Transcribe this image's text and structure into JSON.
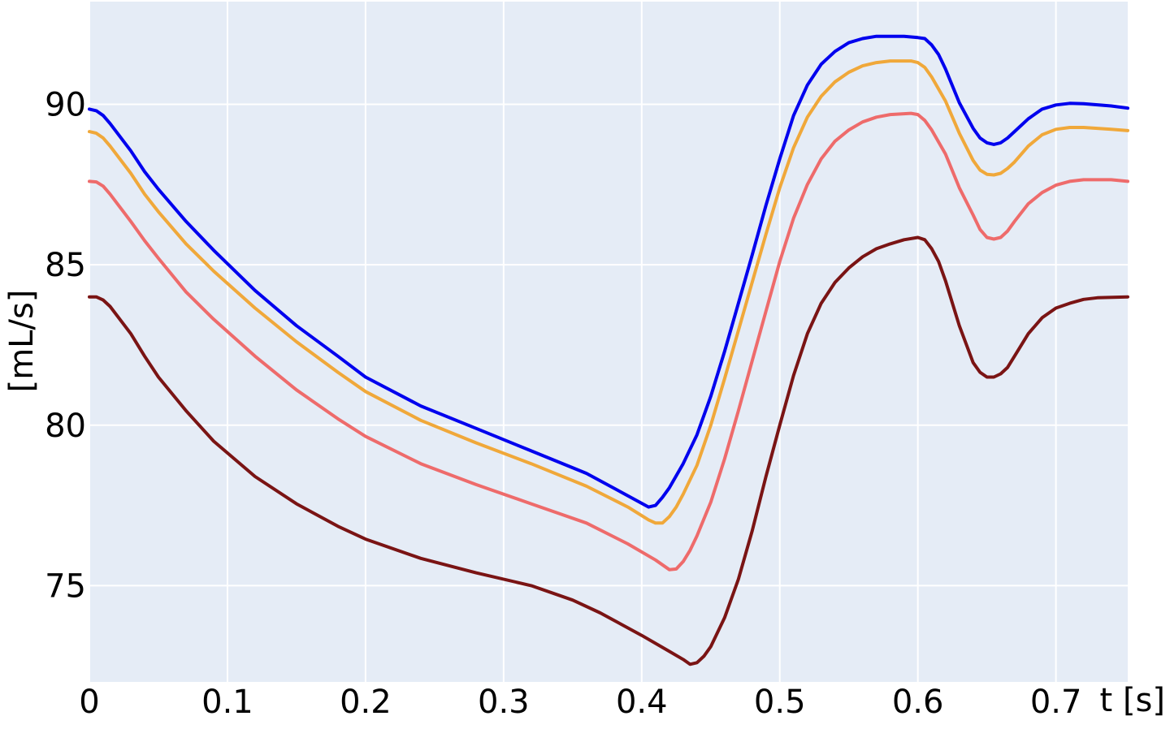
{
  "chart_data": {
    "type": "line",
    "title": "",
    "xlabel": "t [s]",
    "ylabel": "[mL/s]",
    "xlim": [
      0,
      0.752
    ],
    "ylim": [
      72.0,
      93.2
    ],
    "grid": true,
    "background_color": "#e5ecf6",
    "x_ticks": [
      {
        "value": 0,
        "label": "0"
      },
      {
        "value": 0.1,
        "label": "0.1"
      },
      {
        "value": 0.2,
        "label": "0.2"
      },
      {
        "value": 0.3,
        "label": "0.3"
      },
      {
        "value": 0.4,
        "label": "0.4"
      },
      {
        "value": 0.5,
        "label": "0.5"
      },
      {
        "value": 0.6,
        "label": "0.6"
      },
      {
        "value": 0.7,
        "label": "0.7"
      }
    ],
    "y_ticks": [
      {
        "value": 75,
        "label": "75"
      },
      {
        "value": 80,
        "label": "80"
      },
      {
        "value": 85,
        "label": "85"
      },
      {
        "value": 90,
        "label": "90"
      }
    ],
    "series": [
      {
        "color": "#0000ee",
        "points": [
          [
            0,
            89.85
          ],
          [
            0.005,
            89.8
          ],
          [
            0.01,
            89.65
          ],
          [
            0.015,
            89.4
          ],
          [
            0.03,
            88.55
          ],
          [
            0.04,
            87.9
          ],
          [
            0.05,
            87.35
          ],
          [
            0.07,
            86.35
          ],
          [
            0.09,
            85.45
          ],
          [
            0.12,
            84.2
          ],
          [
            0.15,
            83.1
          ],
          [
            0.18,
            82.15
          ],
          [
            0.2,
            81.5
          ],
          [
            0.24,
            80.6
          ],
          [
            0.28,
            79.9
          ],
          [
            0.32,
            79.2
          ],
          [
            0.36,
            78.5
          ],
          [
            0.39,
            77.8
          ],
          [
            0.405,
            77.45
          ],
          [
            0.41,
            77.5
          ],
          [
            0.415,
            77.75
          ],
          [
            0.42,
            78.05
          ],
          [
            0.43,
            78.8
          ],
          [
            0.44,
            79.7
          ],
          [
            0.45,
            80.9
          ],
          [
            0.46,
            82.3
          ],
          [
            0.47,
            83.8
          ],
          [
            0.48,
            85.3
          ],
          [
            0.49,
            86.85
          ],
          [
            0.5,
            88.3
          ],
          [
            0.51,
            89.65
          ],
          [
            0.52,
            90.6
          ],
          [
            0.53,
            91.25
          ],
          [
            0.54,
            91.65
          ],
          [
            0.55,
            91.92
          ],
          [
            0.56,
            92.05
          ],
          [
            0.57,
            92.12
          ],
          [
            0.59,
            92.12
          ],
          [
            0.6,
            92.08
          ],
          [
            0.605,
            92.05
          ],
          [
            0.61,
            91.85
          ],
          [
            0.615,
            91.55
          ],
          [
            0.62,
            91.1
          ],
          [
            0.63,
            90.05
          ],
          [
            0.64,
            89.25
          ],
          [
            0.645,
            88.95
          ],
          [
            0.65,
            88.8
          ],
          [
            0.655,
            88.75
          ],
          [
            0.66,
            88.8
          ],
          [
            0.665,
            88.95
          ],
          [
            0.67,
            89.15
          ],
          [
            0.68,
            89.55
          ],
          [
            0.69,
            89.85
          ],
          [
            0.7,
            89.98
          ],
          [
            0.71,
            90.03
          ],
          [
            0.72,
            90.02
          ],
          [
            0.74,
            89.95
          ],
          [
            0.752,
            89.88
          ]
        ]
      },
      {
        "color": "#f0a83a",
        "points": [
          [
            0,
            89.15
          ],
          [
            0.005,
            89.1
          ],
          [
            0.01,
            88.95
          ],
          [
            0.015,
            88.7
          ],
          [
            0.03,
            87.85
          ],
          [
            0.04,
            87.2
          ],
          [
            0.05,
            86.65
          ],
          [
            0.07,
            85.65
          ],
          [
            0.09,
            84.8
          ],
          [
            0.12,
            83.65
          ],
          [
            0.15,
            82.6
          ],
          [
            0.18,
            81.65
          ],
          [
            0.2,
            81.05
          ],
          [
            0.24,
            80.15
          ],
          [
            0.28,
            79.45
          ],
          [
            0.32,
            78.8
          ],
          [
            0.36,
            78.1
          ],
          [
            0.39,
            77.45
          ],
          [
            0.405,
            77.05
          ],
          [
            0.41,
            76.95
          ],
          [
            0.415,
            76.95
          ],
          [
            0.42,
            77.15
          ],
          [
            0.425,
            77.45
          ],
          [
            0.43,
            77.85
          ],
          [
            0.44,
            78.75
          ],
          [
            0.45,
            80.0
          ],
          [
            0.46,
            81.45
          ],
          [
            0.47,
            82.95
          ],
          [
            0.48,
            84.45
          ],
          [
            0.49,
            85.95
          ],
          [
            0.5,
            87.4
          ],
          [
            0.51,
            88.65
          ],
          [
            0.52,
            89.6
          ],
          [
            0.53,
            90.25
          ],
          [
            0.54,
            90.7
          ],
          [
            0.55,
            91.0
          ],
          [
            0.56,
            91.2
          ],
          [
            0.57,
            91.3
          ],
          [
            0.58,
            91.35
          ],
          [
            0.595,
            91.35
          ],
          [
            0.6,
            91.3
          ],
          [
            0.605,
            91.15
          ],
          [
            0.61,
            90.85
          ],
          [
            0.62,
            90.1
          ],
          [
            0.63,
            89.1
          ],
          [
            0.64,
            88.25
          ],
          [
            0.645,
            87.95
          ],
          [
            0.65,
            87.82
          ],
          [
            0.655,
            87.8
          ],
          [
            0.66,
            87.85
          ],
          [
            0.665,
            88.0
          ],
          [
            0.67,
            88.2
          ],
          [
            0.68,
            88.7
          ],
          [
            0.69,
            89.05
          ],
          [
            0.7,
            89.22
          ],
          [
            0.71,
            89.28
          ],
          [
            0.72,
            89.28
          ],
          [
            0.74,
            89.22
          ],
          [
            0.752,
            89.18
          ]
        ]
      },
      {
        "color": "#ee6b6b",
        "points": [
          [
            0,
            87.6
          ],
          [
            0.005,
            87.58
          ],
          [
            0.01,
            87.45
          ],
          [
            0.015,
            87.2
          ],
          [
            0.03,
            86.35
          ],
          [
            0.04,
            85.75
          ],
          [
            0.05,
            85.2
          ],
          [
            0.07,
            84.15
          ],
          [
            0.09,
            83.3
          ],
          [
            0.12,
            82.15
          ],
          [
            0.15,
            81.1
          ],
          [
            0.18,
            80.2
          ],
          [
            0.2,
            79.65
          ],
          [
            0.24,
            78.8
          ],
          [
            0.28,
            78.15
          ],
          [
            0.32,
            77.55
          ],
          [
            0.36,
            76.95
          ],
          [
            0.39,
            76.3
          ],
          [
            0.41,
            75.8
          ],
          [
            0.42,
            75.5
          ],
          [
            0.425,
            75.52
          ],
          [
            0.43,
            75.75
          ],
          [
            0.435,
            76.1
          ],
          [
            0.44,
            76.55
          ],
          [
            0.45,
            77.6
          ],
          [
            0.46,
            78.95
          ],
          [
            0.47,
            80.45
          ],
          [
            0.48,
            82.0
          ],
          [
            0.49,
            83.55
          ],
          [
            0.5,
            85.1
          ],
          [
            0.51,
            86.45
          ],
          [
            0.52,
            87.5
          ],
          [
            0.53,
            88.3
          ],
          [
            0.54,
            88.85
          ],
          [
            0.55,
            89.2
          ],
          [
            0.56,
            89.45
          ],
          [
            0.57,
            89.6
          ],
          [
            0.58,
            89.68
          ],
          [
            0.595,
            89.72
          ],
          [
            0.6,
            89.68
          ],
          [
            0.605,
            89.5
          ],
          [
            0.61,
            89.2
          ],
          [
            0.62,
            88.45
          ],
          [
            0.63,
            87.4
          ],
          [
            0.64,
            86.55
          ],
          [
            0.645,
            86.1
          ],
          [
            0.65,
            85.85
          ],
          [
            0.655,
            85.8
          ],
          [
            0.66,
            85.85
          ],
          [
            0.665,
            86.05
          ],
          [
            0.67,
            86.35
          ],
          [
            0.68,
            86.9
          ],
          [
            0.69,
            87.25
          ],
          [
            0.7,
            87.48
          ],
          [
            0.71,
            87.6
          ],
          [
            0.72,
            87.65
          ],
          [
            0.74,
            87.65
          ],
          [
            0.752,
            87.6
          ]
        ]
      },
      {
        "color": "#7a1414",
        "points": [
          [
            0,
            84.0
          ],
          [
            0.005,
            84.0
          ],
          [
            0.01,
            83.9
          ],
          [
            0.015,
            83.7
          ],
          [
            0.03,
            82.85
          ],
          [
            0.04,
            82.15
          ],
          [
            0.05,
            81.5
          ],
          [
            0.07,
            80.45
          ],
          [
            0.09,
            79.5
          ],
          [
            0.12,
            78.4
          ],
          [
            0.15,
            77.55
          ],
          [
            0.18,
            76.85
          ],
          [
            0.2,
            76.45
          ],
          [
            0.24,
            75.85
          ],
          [
            0.28,
            75.4
          ],
          [
            0.32,
            75.0
          ],
          [
            0.35,
            74.55
          ],
          [
            0.37,
            74.15
          ],
          [
            0.4,
            73.45
          ],
          [
            0.42,
            72.95
          ],
          [
            0.43,
            72.7
          ],
          [
            0.435,
            72.55
          ],
          [
            0.44,
            72.6
          ],
          [
            0.445,
            72.8
          ],
          [
            0.45,
            73.1
          ],
          [
            0.46,
            74.0
          ],
          [
            0.47,
            75.2
          ],
          [
            0.48,
            76.7
          ],
          [
            0.49,
            78.4
          ],
          [
            0.5,
            80.0
          ],
          [
            0.51,
            81.55
          ],
          [
            0.52,
            82.85
          ],
          [
            0.53,
            83.8
          ],
          [
            0.54,
            84.45
          ],
          [
            0.55,
            84.9
          ],
          [
            0.56,
            85.25
          ],
          [
            0.57,
            85.5
          ],
          [
            0.58,
            85.65
          ],
          [
            0.59,
            85.78
          ],
          [
            0.6,
            85.85
          ],
          [
            0.605,
            85.78
          ],
          [
            0.61,
            85.5
          ],
          [
            0.615,
            85.1
          ],
          [
            0.62,
            84.5
          ],
          [
            0.63,
            83.1
          ],
          [
            0.64,
            81.95
          ],
          [
            0.645,
            81.65
          ],
          [
            0.65,
            81.5
          ],
          [
            0.655,
            81.5
          ],
          [
            0.66,
            81.6
          ],
          [
            0.665,
            81.8
          ],
          [
            0.67,
            82.15
          ],
          [
            0.68,
            82.85
          ],
          [
            0.69,
            83.35
          ],
          [
            0.7,
            83.65
          ],
          [
            0.71,
            83.8
          ],
          [
            0.72,
            83.92
          ],
          [
            0.73,
            83.97
          ],
          [
            0.752,
            84.0
          ]
        ]
      }
    ]
  }
}
